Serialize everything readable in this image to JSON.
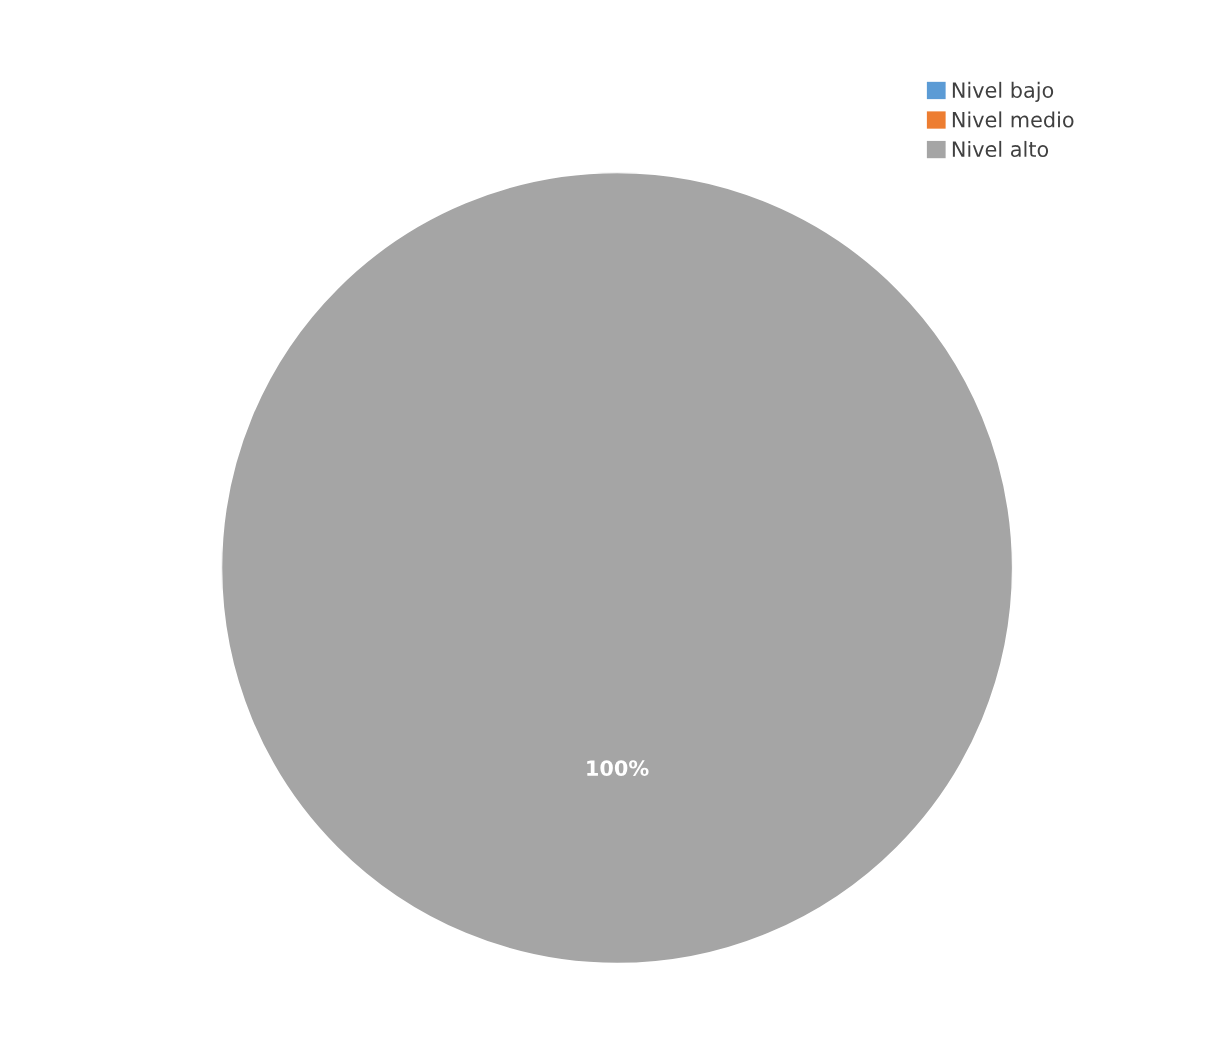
{
  "chart_data": {
    "type": "pie",
    "categories": [
      "Nivel bajo",
      "Nivel medio",
      "Nivel alto"
    ],
    "values": [
      0,
      0,
      100
    ],
    "colors": [
      "#5b9bd5",
      "#ed7d31",
      "#a5a5a5"
    ],
    "value_labels": [
      null,
      null,
      "100%"
    ],
    "legend": "top right"
  }
}
